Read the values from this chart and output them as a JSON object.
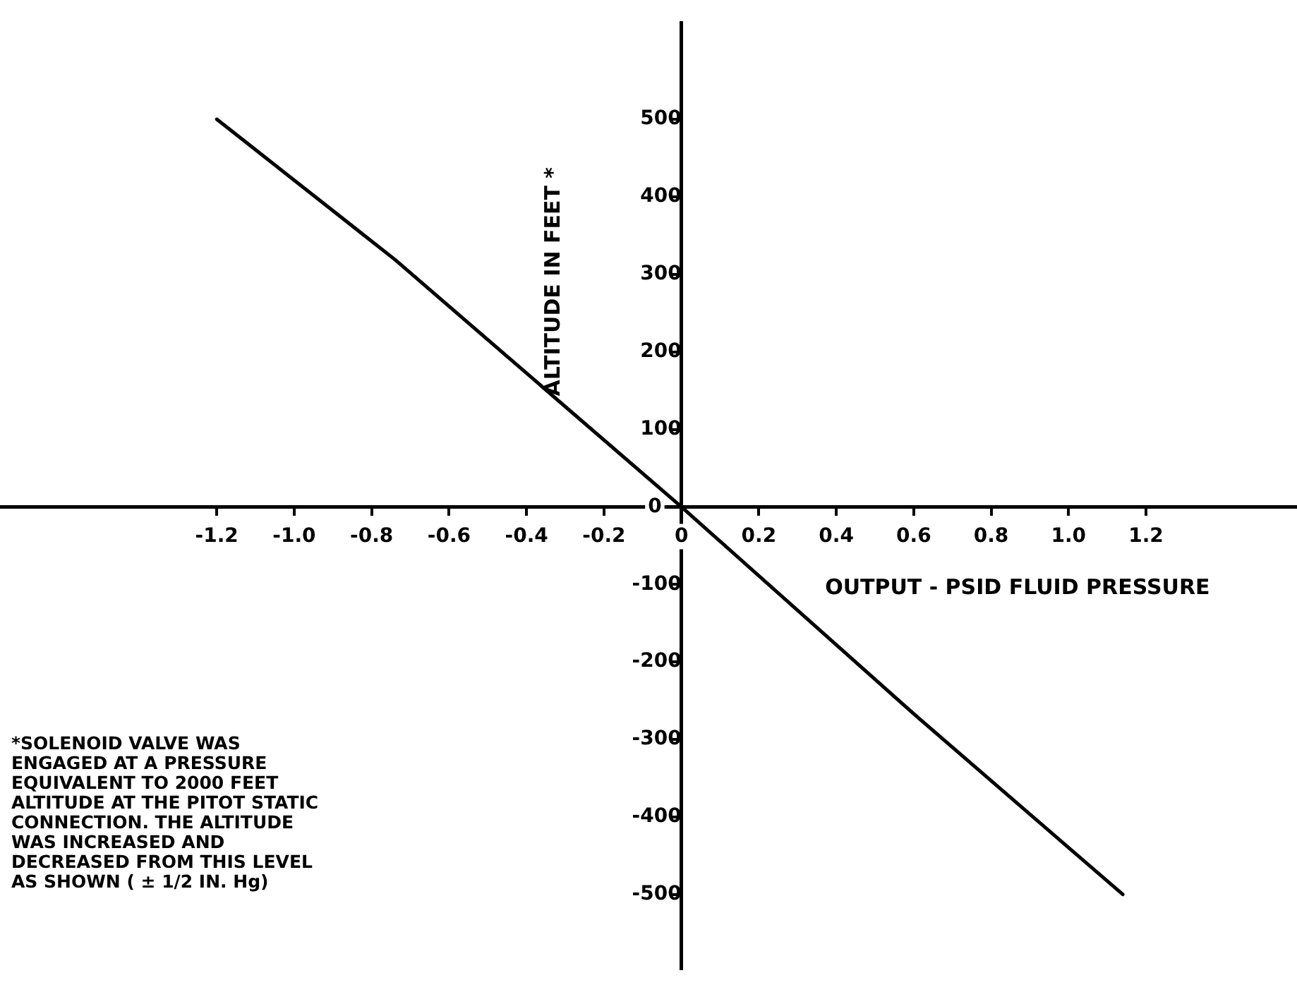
{
  "chart_data": {
    "type": "line",
    "xlabel": "OUTPUT - PSID FLUID PRESSURE",
    "ylabel": "ALTITUDE IN FEET *",
    "x": [
      -1.2,
      -0.74,
      0,
      0.6,
      1.14
    ],
    "series": [
      {
        "color": "#000000",
        "values": [
          500,
          319,
          0,
          -267,
          -500
        ]
      }
    ],
    "xlim": [
      -1.76,
      1.59
    ],
    "ylim": [
      -596,
      624
    ],
    "xticks": [
      -1.2,
      {
        "value": -1,
        "label": "-1.0"
      },
      -0.8,
      -0.6,
      -0.4,
      -0.2,
      0,
      0.2,
      0.4,
      0.6,
      0.8,
      {
        "value": 1,
        "label": "1.0"
      },
      1.2
    ],
    "yticks": [
      -500,
      -400,
      -300,
      -200,
      -100,
      0,
      100,
      200,
      300,
      400,
      500
    ],
    "grid": false,
    "legend": false,
    "annotations": [
      "*SOLENOID VALVE WAS ENGAGED AT A PRESSURE EQUIVALENT TO 2000 FEET ALTITUDE AT THE PITOT STATIC CONNECTION. THE ALTITUDE WAS INCREASED AND DECREASED FROM THIS LEVEL AS SHOWN ( ± 1/2 IN. Hg)"
    ]
  }
}
